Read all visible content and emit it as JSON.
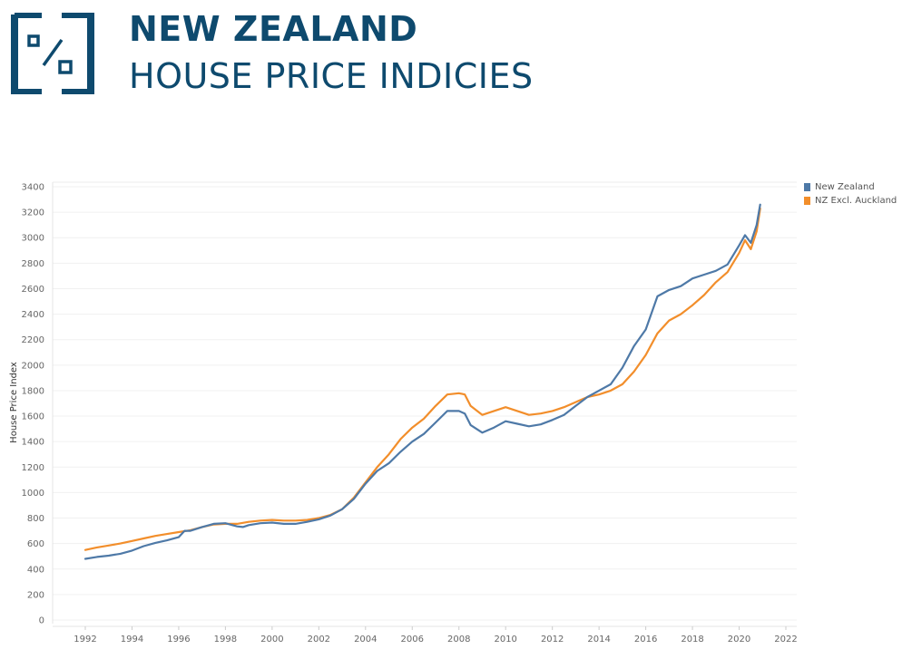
{
  "header": {
    "title": "NEW ZEALAND",
    "subtitle": "HOUSE PRICE INDICIES",
    "logo_icon": "percent-bracket-icon",
    "brand_color": "#0e4a6e"
  },
  "chart_data": {
    "type": "line",
    "title": "",
    "xlabel": "",
    "ylabel": "House Price Index",
    "xlim": [
      1991,
      2023
    ],
    "ylim": [
      0,
      3400
    ],
    "x_ticks": [
      "1992",
      "1994",
      "1996",
      "1998",
      "2000",
      "2002",
      "2004",
      "2006",
      "2008",
      "2010",
      "2012",
      "2014",
      "2016",
      "2018",
      "2020",
      "2022"
    ],
    "y_ticks": [
      "0",
      "200",
      "400",
      "600",
      "800",
      "1000",
      "1200",
      "1400",
      "1600",
      "1800",
      "2000",
      "2200",
      "2400",
      "2600",
      "2800",
      "3000",
      "3200",
      "3400"
    ],
    "grid": true,
    "legend_position": "top-right",
    "series": [
      {
        "name": "New Zealand",
        "color": "#4e79a7",
        "points": [
          [
            1992.0,
            480
          ],
          [
            1992.5,
            495
          ],
          [
            1993.0,
            505
          ],
          [
            1993.5,
            520
          ],
          [
            1994.0,
            545
          ],
          [
            1994.5,
            580
          ],
          [
            1995.0,
            605
          ],
          [
            1995.5,
            625
          ],
          [
            1996.0,
            650
          ],
          [
            1996.25,
            700
          ],
          [
            1996.5,
            700
          ],
          [
            1997.0,
            730
          ],
          [
            1997.5,
            755
          ],
          [
            1998.0,
            760
          ],
          [
            1998.5,
            735
          ],
          [
            1998.75,
            730
          ],
          [
            1999.0,
            745
          ],
          [
            1999.5,
            760
          ],
          [
            2000.0,
            765
          ],
          [
            2000.5,
            755
          ],
          [
            2001.0,
            755
          ],
          [
            2001.5,
            770
          ],
          [
            2002.0,
            790
          ],
          [
            2002.5,
            820
          ],
          [
            2003.0,
            870
          ],
          [
            2003.5,
            950
          ],
          [
            2004.0,
            1070
          ],
          [
            2004.5,
            1170
          ],
          [
            2005.0,
            1230
          ],
          [
            2005.5,
            1320
          ],
          [
            2006.0,
            1400
          ],
          [
            2006.5,
            1460
          ],
          [
            2007.0,
            1550
          ],
          [
            2007.5,
            1640
          ],
          [
            2008.0,
            1640
          ],
          [
            2008.25,
            1620
          ],
          [
            2008.5,
            1530
          ],
          [
            2009.0,
            1470
          ],
          [
            2009.5,
            1510
          ],
          [
            2010.0,
            1560
          ],
          [
            2010.5,
            1540
          ],
          [
            2011.0,
            1520
          ],
          [
            2011.5,
            1535
          ],
          [
            2012.0,
            1570
          ],
          [
            2012.5,
            1610
          ],
          [
            2013.0,
            1680
          ],
          [
            2013.5,
            1750
          ],
          [
            2014.0,
            1800
          ],
          [
            2014.5,
            1850
          ],
          [
            2015.0,
            1980
          ],
          [
            2015.5,
            2150
          ],
          [
            2016.0,
            2280
          ],
          [
            2016.5,
            2540
          ],
          [
            2017.0,
            2590
          ],
          [
            2017.5,
            2620
          ],
          [
            2018.0,
            2680
          ],
          [
            2018.5,
            2710
          ],
          [
            2019.0,
            2740
          ],
          [
            2019.5,
            2790
          ],
          [
            2020.0,
            2940
          ],
          [
            2020.25,
            3020
          ],
          [
            2020.5,
            2960
          ],
          [
            2020.75,
            3100
          ],
          [
            2020.9,
            3260
          ]
        ]
      },
      {
        "name": "NZ Excl. Auckland",
        "color": "#f28e2b",
        "points": [
          [
            1992.0,
            550
          ],
          [
            1992.5,
            570
          ],
          [
            1993.0,
            585
          ],
          [
            1993.5,
            600
          ],
          [
            1994.0,
            620
          ],
          [
            1994.5,
            640
          ],
          [
            1995.0,
            660
          ],
          [
            1995.5,
            675
          ],
          [
            1996.0,
            690
          ],
          [
            1996.5,
            705
          ],
          [
            1997.0,
            730
          ],
          [
            1997.5,
            750
          ],
          [
            1998.0,
            755
          ],
          [
            1998.5,
            755
          ],
          [
            1999.0,
            770
          ],
          [
            1999.5,
            780
          ],
          [
            2000.0,
            785
          ],
          [
            2000.5,
            780
          ],
          [
            2001.0,
            780
          ],
          [
            2001.5,
            785
          ],
          [
            2002.0,
            800
          ],
          [
            2002.5,
            825
          ],
          [
            2003.0,
            870
          ],
          [
            2003.5,
            960
          ],
          [
            2004.0,
            1080
          ],
          [
            2004.5,
            1200
          ],
          [
            2005.0,
            1300
          ],
          [
            2005.5,
            1420
          ],
          [
            2006.0,
            1510
          ],
          [
            2006.5,
            1580
          ],
          [
            2007.0,
            1680
          ],
          [
            2007.5,
            1770
          ],
          [
            2008.0,
            1780
          ],
          [
            2008.25,
            1770
          ],
          [
            2008.5,
            1680
          ],
          [
            2009.0,
            1610
          ],
          [
            2009.5,
            1640
          ],
          [
            2010.0,
            1670
          ],
          [
            2010.5,
            1640
          ],
          [
            2011.0,
            1610
          ],
          [
            2011.5,
            1620
          ],
          [
            2012.0,
            1640
          ],
          [
            2012.5,
            1670
          ],
          [
            2013.0,
            1710
          ],
          [
            2013.5,
            1750
          ],
          [
            2014.0,
            1770
          ],
          [
            2014.5,
            1800
          ],
          [
            2015.0,
            1850
          ],
          [
            2015.5,
            1950
          ],
          [
            2016.0,
            2080
          ],
          [
            2016.5,
            2250
          ],
          [
            2017.0,
            2350
          ],
          [
            2017.5,
            2400
          ],
          [
            2018.0,
            2470
          ],
          [
            2018.5,
            2550
          ],
          [
            2019.0,
            2650
          ],
          [
            2019.5,
            2730
          ],
          [
            2020.0,
            2880
          ],
          [
            2020.25,
            2980
          ],
          [
            2020.5,
            2910
          ],
          [
            2020.75,
            3050
          ],
          [
            2020.9,
            3230
          ]
        ]
      }
    ]
  }
}
